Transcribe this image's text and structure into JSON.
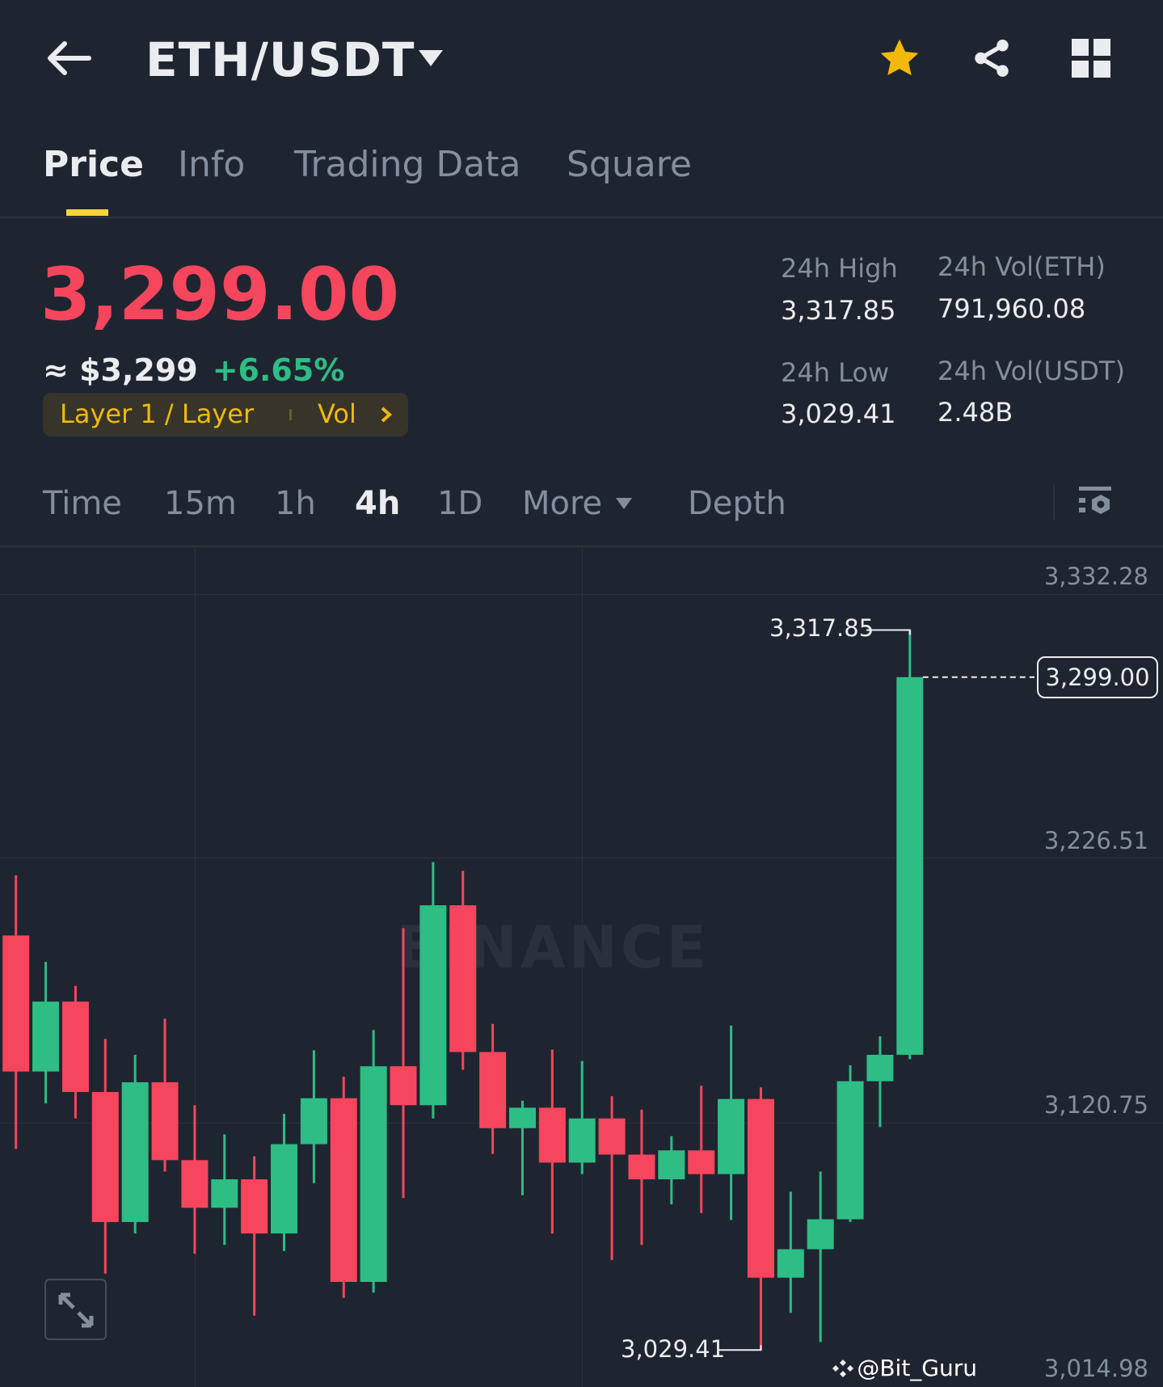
{
  "header": {
    "title": "ETH/USDT",
    "icons": [
      "back-arrow-icon",
      "caret-down-icon",
      "star-icon",
      "share-icon",
      "grid-icon"
    ],
    "favorite_color": "#f0b90b"
  },
  "tabs": [
    {
      "label": "Price",
      "active": true
    },
    {
      "label": "Info"
    },
    {
      "label": "Trading Data"
    },
    {
      "label": "Square"
    }
  ],
  "ticker": {
    "last_price": "3,299.00",
    "usd_approx": "≈ $3,299",
    "change_pct": "+6.65%",
    "tag_label": "Layer 1 / Layer",
    "tag_vol": "Vol",
    "stats": {
      "high_label": "24h High",
      "high_value": "3,317.85",
      "low_label": "24h Low",
      "low_value": "3,029.41",
      "vol_eth_label": "24h Vol(ETH)",
      "vol_eth_value": "791,960.08",
      "vol_usdt_label": "24h Vol(USDT)",
      "vol_usdt_value": "2.48B"
    }
  },
  "intervals": {
    "items": [
      "Time",
      "15m",
      "1h",
      "4h",
      "1D",
      "More",
      "Depth"
    ],
    "active": "4h"
  },
  "colors": {
    "up": "#2ebd85",
    "down": "#f6465d",
    "background": "#1f2530",
    "accent": "#fcd535"
  },
  "chart_data": {
    "type": "candlestick",
    "interval": "4h",
    "y_ticks": [
      "3,332.28",
      "3,226.51",
      "3,120.75",
      "3,014.98"
    ],
    "ylim": [
      3014.98,
      3332.28
    ],
    "current_price_label": "3,299.00",
    "high_marker": "3,317.85",
    "low_marker": "3,029.41",
    "watermark": "BINANCE",
    "ohlc": [
      [
        3195.5,
        3219.6,
        3110.0,
        3141.0
      ],
      [
        3141.0,
        3184.9,
        3128.2,
        3169.0
      ],
      [
        3169.0,
        3175.3,
        3122.2,
        3132.8
      ],
      [
        3132.8,
        3154.1,
        3060.0,
        3080.7
      ],
      [
        3080.7,
        3147.7,
        3076.1,
        3136.7
      ],
      [
        3136.7,
        3162.2,
        3100.9,
        3105.5
      ],
      [
        3105.5,
        3127.5,
        3068.0,
        3086.4
      ],
      [
        3086.4,
        3115.8,
        3071.5,
        3097.8
      ],
      [
        3097.8,
        3107.0,
        3043.2,
        3076.1
      ],
      [
        3076.1,
        3124.0,
        3069.1,
        3111.9
      ],
      [
        3111.9,
        3149.5,
        3096.3,
        3130.3
      ],
      [
        3130.3,
        3138.9,
        3050.3,
        3056.7
      ],
      [
        3056.7,
        3157.6,
        3052.4,
        3143.1
      ],
      [
        3143.1,
        3198.4,
        3090.3,
        3127.5
      ],
      [
        3127.5,
        3224.9,
        3122.2,
        3207.6
      ],
      [
        3207.6,
        3221.4,
        3141.7,
        3148.8
      ],
      [
        3148.8,
        3160.1,
        3108.0,
        3118.3
      ],
      [
        3118.3,
        3129.3,
        3091.4,
        3126.5
      ],
      [
        3126.5,
        3149.8,
        3076.1,
        3104.5
      ],
      [
        3104.5,
        3145.2,
        3099.9,
        3122.2
      ],
      [
        3122.2,
        3131.1,
        3065.5,
        3107.7
      ],
      [
        3107.7,
        3125.7,
        3071.5,
        3097.8
      ],
      [
        3097.8,
        3115.1,
        3087.8,
        3109.4
      ],
      [
        3109.4,
        3135.3,
        3084.3,
        3099.9
      ],
      [
        3099.9,
        3159.4,
        3081.5,
        3130.0
      ],
      [
        3130.0,
        3134.6,
        3029.41,
        3058.4
      ],
      [
        3058.4,
        3092.8,
        3044.3,
        3069.8
      ],
      [
        3069.8,
        3100.9,
        3032.6,
        3081.8
      ],
      [
        3081.8,
        3143.5,
        3080.7,
        3137.1
      ],
      [
        3137.1,
        3155.1,
        3118.7,
        3147.7
      ],
      [
        3147.7,
        3317.85,
        3145.9,
        3299.0
      ]
    ]
  },
  "credit": "@Bit_Guru"
}
